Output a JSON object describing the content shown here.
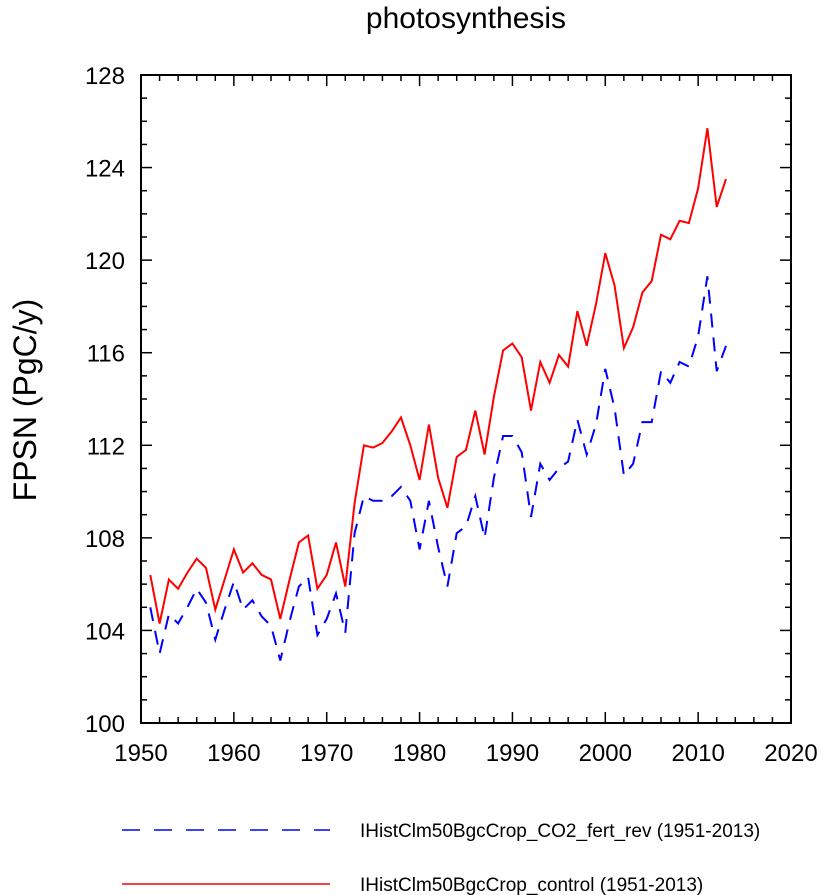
{
  "chart_data": {
    "type": "line",
    "title": "photosynthesis",
    "xlabel": "",
    "ylabel": "FPSN  (PgC/y)",
    "xlim": [
      1950,
      2020
    ],
    "ylim": [
      100,
      128
    ],
    "xticks": [
      1950,
      1960,
      1970,
      1980,
      1990,
      2000,
      2010,
      2020
    ],
    "yticks": [
      100,
      104,
      108,
      112,
      116,
      120,
      124,
      128
    ],
    "grid": false,
    "legend_position": "bottom",
    "x": [
      1951,
      1952,
      1953,
      1954,
      1955,
      1956,
      1957,
      1958,
      1959,
      1960,
      1961,
      1962,
      1963,
      1964,
      1965,
      1966,
      1967,
      1968,
      1969,
      1970,
      1971,
      1972,
      1973,
      1974,
      1975,
      1976,
      1977,
      1978,
      1979,
      1980,
      1981,
      1982,
      1983,
      1984,
      1985,
      1986,
      1987,
      1988,
      1989,
      1990,
      1991,
      1992,
      1993,
      1994,
      1995,
      1996,
      1997,
      1998,
      1999,
      2000,
      2001,
      2002,
      2003,
      2004,
      2005,
      2006,
      2007,
      2008,
      2009,
      2010,
      2011,
      2012,
      2013
    ],
    "series": [
      {
        "name": "IHistClm50BgcCrop_CO2_fert_rev (1951-2013)",
        "color": "#0000ff",
        "style": "dashed",
        "values": [
          105.0,
          103.0,
          104.7,
          104.3,
          105.0,
          105.8,
          105.2,
          103.6,
          104.9,
          106.1,
          104.9,
          105.3,
          104.6,
          104.2,
          102.7,
          104.4,
          105.9,
          106.3,
          103.8,
          104.5,
          105.6,
          103.9,
          108.2,
          109.8,
          109.6,
          109.6,
          109.8,
          110.2,
          109.6,
          107.5,
          109.6,
          107.6,
          105.9,
          108.2,
          108.5,
          109.8,
          108.0,
          110.6,
          112.4,
          112.4,
          111.7,
          108.9,
          111.2,
          110.5,
          111.0,
          111.3,
          113.1,
          111.6,
          112.9,
          115.3,
          113.6,
          110.7,
          111.2,
          113.0,
          113.0,
          115.2,
          114.7,
          115.6,
          115.4,
          116.7,
          119.3,
          115.2,
          116.3
        ]
      },
      {
        "name": "IHistClm50BgcCrop_control (1951-2013)",
        "color": "#ff0000",
        "style": "solid",
        "values": [
          106.4,
          104.3,
          106.2,
          105.8,
          106.5,
          107.1,
          106.7,
          104.9,
          106.2,
          107.5,
          106.5,
          106.9,
          106.4,
          106.2,
          104.5,
          106.2,
          107.8,
          108.1,
          105.8,
          106.4,
          107.8,
          105.9,
          109.5,
          112.0,
          111.9,
          112.1,
          112.6,
          113.2,
          112.0,
          110.5,
          112.9,
          110.6,
          109.3,
          111.5,
          111.8,
          113.5,
          111.6,
          114.1,
          116.1,
          116.4,
          115.8,
          113.5,
          115.6,
          114.7,
          115.9,
          115.4,
          117.8,
          116.3,
          118.1,
          120.3,
          118.9,
          116.2,
          117.1,
          118.6,
          119.1,
          121.1,
          120.9,
          121.7,
          121.6,
          123.1,
          125.7,
          122.3,
          123.5
        ]
      }
    ]
  }
}
